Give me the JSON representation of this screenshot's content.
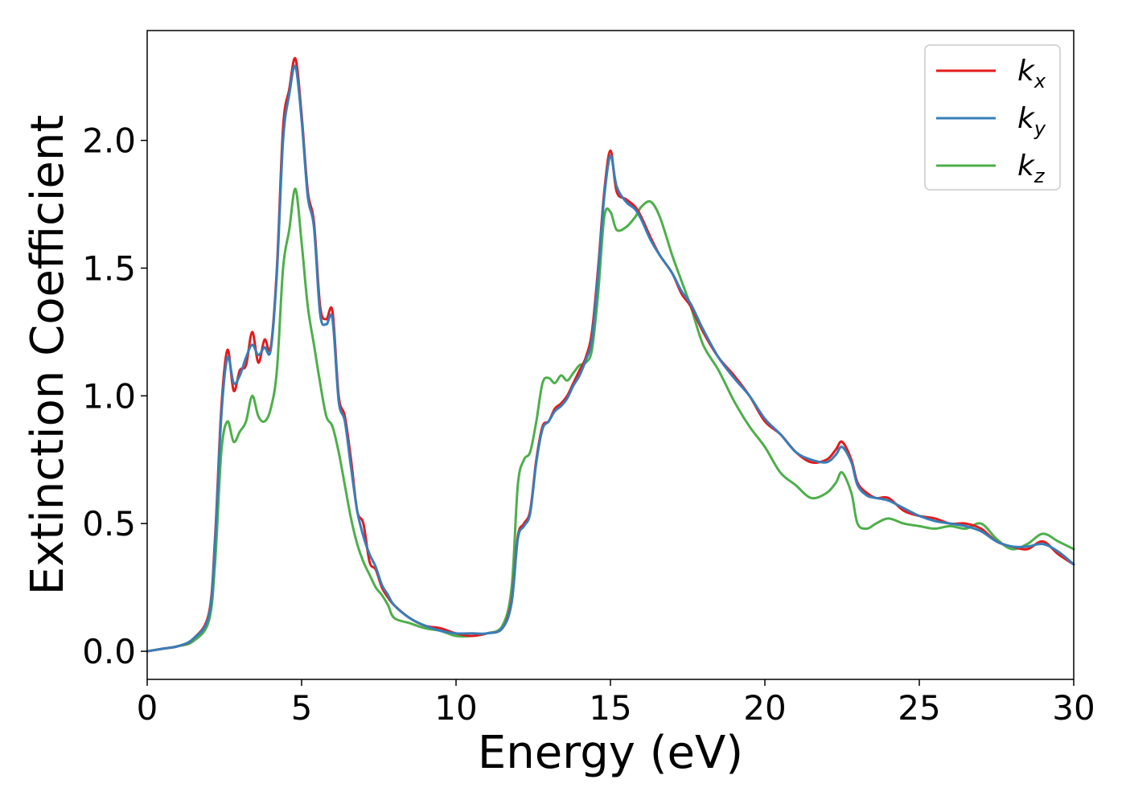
{
  "chart_data": {
    "type": "line",
    "title": "",
    "xlabel": "Energy (eV)",
    "ylabel": "Extinction Coefficient",
    "xlim": [
      0,
      30
    ],
    "ylim": [
      -0.11,
      2.43
    ],
    "xticks": [
      0,
      5,
      10,
      15,
      20,
      25,
      30
    ],
    "xtick_labels": [
      "0",
      "5",
      "10",
      "15",
      "20",
      "25",
      "30"
    ],
    "yticks": [
      0.0,
      0.5,
      1.0,
      1.5,
      2.0
    ],
    "ytick_labels": [
      "0.0",
      "0.5",
      "1.0",
      "1.5",
      "2.0"
    ],
    "grid": false,
    "legend": {
      "position": "top-right"
    },
    "series": [
      {
        "name": "k_x",
        "label_main": "k",
        "label_sub": "x",
        "color": "#e41a1c",
        "x": [
          0,
          0.5,
          1,
          1.5,
          2,
          2.2,
          2.4,
          2.6,
          2.8,
          3,
          3.2,
          3.4,
          3.6,
          3.8,
          4,
          4.2,
          4.4,
          4.6,
          4.8,
          5,
          5.2,
          5.4,
          5.6,
          5.8,
          6,
          6.2,
          6.4,
          6.6,
          6.8,
          7,
          7.2,
          7.4,
          7.6,
          7.8,
          8,
          8.5,
          9,
          9.5,
          10,
          10.5,
          11,
          11.5,
          11.8,
          12,
          12.2,
          12.4,
          12.6,
          12.8,
          13,
          13.2,
          13.4,
          13.6,
          13.8,
          14,
          14.2,
          14.4,
          14.6,
          14.8,
          15,
          15.2,
          15.5,
          15.8,
          16,
          16.3,
          16.6,
          17,
          17.3,
          17.6,
          18,
          18.5,
          19,
          19.5,
          20,
          20.5,
          21,
          21.5,
          22,
          22.3,
          22.5,
          22.8,
          23,
          23.3,
          23.6,
          24,
          24.5,
          25,
          25.5,
          26,
          26.5,
          27,
          27.5,
          28,
          28.5,
          29,
          29.5,
          30
        ],
        "y": [
          0,
          0.01,
          0.02,
          0.05,
          0.15,
          0.45,
          0.95,
          1.18,
          1.02,
          1.1,
          1.12,
          1.25,
          1.13,
          1.22,
          1.19,
          1.5,
          2.05,
          2.2,
          2.32,
          2.1,
          1.8,
          1.68,
          1.35,
          1.3,
          1.33,
          1.0,
          0.92,
          0.75,
          0.55,
          0.5,
          0.35,
          0.32,
          0.25,
          0.21,
          0.18,
          0.13,
          0.1,
          0.09,
          0.07,
          0.06,
          0.07,
          0.09,
          0.2,
          0.45,
          0.5,
          0.55,
          0.75,
          0.88,
          0.9,
          0.95,
          0.97,
          1.0,
          1.05,
          1.1,
          1.15,
          1.25,
          1.5,
          1.8,
          1.96,
          1.8,
          1.77,
          1.74,
          1.7,
          1.62,
          1.55,
          1.48,
          1.4,
          1.35,
          1.25,
          1.15,
          1.08,
          1.0,
          0.9,
          0.85,
          0.78,
          0.74,
          0.75,
          0.79,
          0.82,
          0.75,
          0.66,
          0.62,
          0.6,
          0.6,
          0.55,
          0.53,
          0.52,
          0.5,
          0.5,
          0.48,
          0.43,
          0.41,
          0.4,
          0.43,
          0.38,
          0.34
        ]
      },
      {
        "name": "k_y",
        "label_main": "k",
        "label_sub": "y",
        "color": "#377eb8",
        "x": [
          0,
          0.5,
          1,
          1.5,
          2,
          2.2,
          2.4,
          2.6,
          2.8,
          3,
          3.2,
          3.4,
          3.6,
          3.8,
          4,
          4.2,
          4.4,
          4.6,
          4.8,
          5,
          5.2,
          5.4,
          5.6,
          5.8,
          6,
          6.2,
          6.4,
          6.6,
          6.8,
          7,
          7.2,
          7.4,
          7.6,
          7.8,
          8,
          8.5,
          9,
          9.5,
          10,
          10.5,
          11,
          11.5,
          11.8,
          12,
          12.2,
          12.4,
          12.6,
          12.8,
          13,
          13.2,
          13.4,
          13.6,
          13.8,
          14,
          14.2,
          14.4,
          14.6,
          14.8,
          15,
          15.2,
          15.5,
          15.8,
          16,
          16.3,
          16.6,
          17,
          17.3,
          17.6,
          18,
          18.5,
          19,
          19.5,
          20,
          20.5,
          21,
          21.5,
          22,
          22.3,
          22.5,
          22.8,
          23,
          23.3,
          23.6,
          24,
          24.5,
          25,
          25.5,
          26,
          26.5,
          27,
          27.5,
          28,
          28.5,
          29,
          29.5,
          30
        ],
        "y": [
          0,
          0.01,
          0.02,
          0.05,
          0.14,
          0.43,
          0.92,
          1.15,
          1.05,
          1.08,
          1.15,
          1.2,
          1.16,
          1.19,
          1.18,
          1.48,
          2.0,
          2.18,
          2.29,
          2.08,
          1.78,
          1.66,
          1.32,
          1.28,
          1.3,
          0.98,
          0.9,
          0.72,
          0.55,
          0.45,
          0.38,
          0.33,
          0.26,
          0.22,
          0.18,
          0.13,
          0.1,
          0.08,
          0.07,
          0.07,
          0.07,
          0.09,
          0.19,
          0.44,
          0.49,
          0.54,
          0.74,
          0.87,
          0.9,
          0.94,
          0.96,
          0.99,
          1.04,
          1.08,
          1.14,
          1.22,
          1.48,
          1.78,
          1.94,
          1.82,
          1.76,
          1.73,
          1.69,
          1.61,
          1.55,
          1.48,
          1.41,
          1.36,
          1.26,
          1.15,
          1.07,
          1.0,
          0.91,
          0.85,
          0.78,
          0.75,
          0.74,
          0.77,
          0.8,
          0.74,
          0.65,
          0.61,
          0.6,
          0.59,
          0.56,
          0.53,
          0.51,
          0.5,
          0.49,
          0.47,
          0.43,
          0.41,
          0.41,
          0.42,
          0.39,
          0.34
        ]
      },
      {
        "name": "k_z",
        "label_main": "k",
        "label_sub": "z",
        "color": "#4daf4a",
        "x": [
          0,
          0.5,
          1,
          1.5,
          2,
          2.2,
          2.4,
          2.6,
          2.8,
          3,
          3.2,
          3.4,
          3.6,
          3.8,
          4,
          4.2,
          4.4,
          4.6,
          4.8,
          5,
          5.2,
          5.4,
          5.6,
          5.8,
          6,
          6.2,
          6.4,
          6.6,
          6.8,
          7,
          7.2,
          7.4,
          7.6,
          7.8,
          8,
          8.5,
          9,
          9.5,
          10,
          10.5,
          11,
          11.5,
          11.8,
          12,
          12.2,
          12.4,
          12.6,
          12.8,
          13,
          13.2,
          13.4,
          13.6,
          13.8,
          14,
          14.2,
          14.4,
          14.6,
          14.8,
          15,
          15.2,
          15.5,
          15.8,
          16,
          16.3,
          16.6,
          17,
          17.3,
          17.6,
          18,
          18.5,
          19,
          19.5,
          20,
          20.5,
          21,
          21.5,
          22,
          22.3,
          22.5,
          22.8,
          23,
          23.3,
          23.6,
          24,
          24.5,
          25,
          25.5,
          26,
          26.5,
          27,
          27.5,
          28,
          28.5,
          29,
          29.5,
          30
        ],
        "y": [
          0,
          0.01,
          0.02,
          0.04,
          0.12,
          0.35,
          0.78,
          0.9,
          0.82,
          0.86,
          0.9,
          1.0,
          0.92,
          0.9,
          0.95,
          1.1,
          1.5,
          1.65,
          1.81,
          1.6,
          1.35,
          1.2,
          1.05,
          0.92,
          0.88,
          0.78,
          0.65,
          0.52,
          0.42,
          0.35,
          0.3,
          0.25,
          0.22,
          0.18,
          0.13,
          0.11,
          0.09,
          0.08,
          0.06,
          0.06,
          0.07,
          0.1,
          0.25,
          0.65,
          0.75,
          0.78,
          0.9,
          1.05,
          1.07,
          1.05,
          1.08,
          1.06,
          1.09,
          1.12,
          1.13,
          1.18,
          1.4,
          1.7,
          1.72,
          1.65,
          1.66,
          1.7,
          1.74,
          1.76,
          1.7,
          1.55,
          1.45,
          1.35,
          1.2,
          1.1,
          0.98,
          0.88,
          0.8,
          0.7,
          0.65,
          0.6,
          0.62,
          0.66,
          0.7,
          0.62,
          0.5,
          0.48,
          0.5,
          0.52,
          0.5,
          0.49,
          0.48,
          0.49,
          0.48,
          0.5,
          0.44,
          0.4,
          0.42,
          0.46,
          0.43,
          0.4
        ]
      }
    ]
  }
}
